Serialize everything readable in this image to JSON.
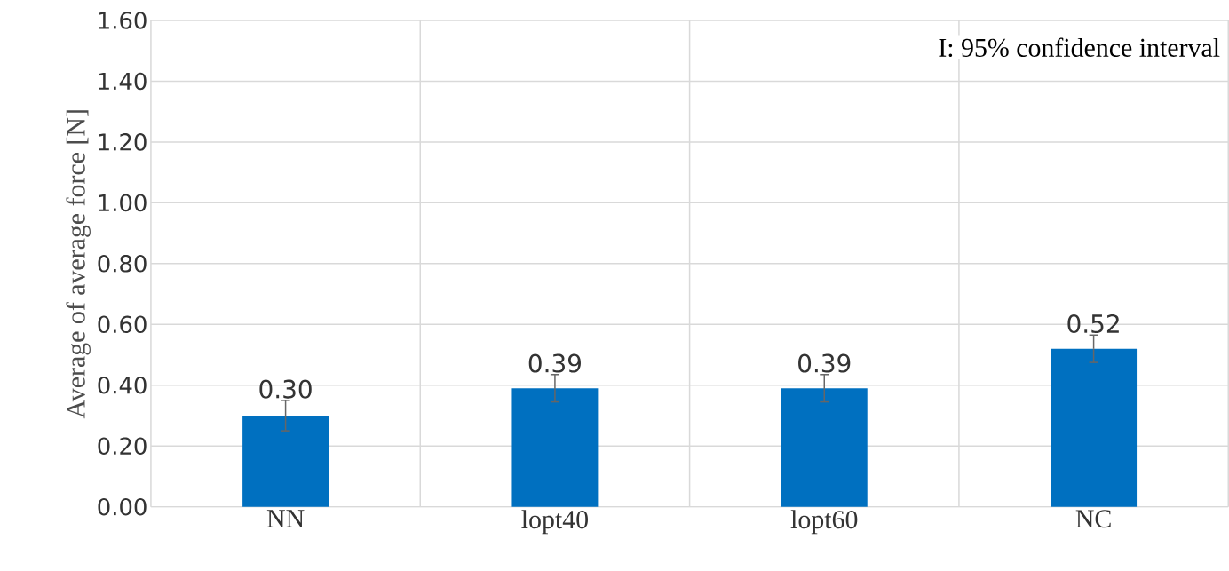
{
  "chart_data": {
    "type": "bar",
    "ylabel": "Average of average force [N]",
    "categories": [
      "NN",
      "lopt40",
      "lopt60",
      "NC"
    ],
    "values": [
      0.3,
      0.39,
      0.39,
      0.52
    ],
    "errors": [
      0.05,
      0.045,
      0.045,
      0.045
    ],
    "value_labels": [
      "0.30",
      "0.39",
      "0.39",
      "0.52"
    ],
    "color": "#0070c0",
    "ylim": [
      0,
      1.6
    ],
    "yticks": [
      {
        "value": 0,
        "label": "0.00"
      },
      {
        "value": 0.2,
        "label": "0.20"
      },
      {
        "value": 0.4,
        "label": "0.40"
      },
      {
        "value": 0.6,
        "label": "0.60"
      },
      {
        "value": 0.8,
        "label": "0.80"
      },
      {
        "value": 1.0,
        "label": "1.00"
      },
      {
        "value": 1.2,
        "label": "1.20"
      },
      {
        "value": 1.4,
        "label": "1.40"
      },
      {
        "value": 1.6,
        "label": "1.60"
      }
    ],
    "grid": true,
    "annotations": [
      "I: 95% confidence interval"
    ]
  }
}
